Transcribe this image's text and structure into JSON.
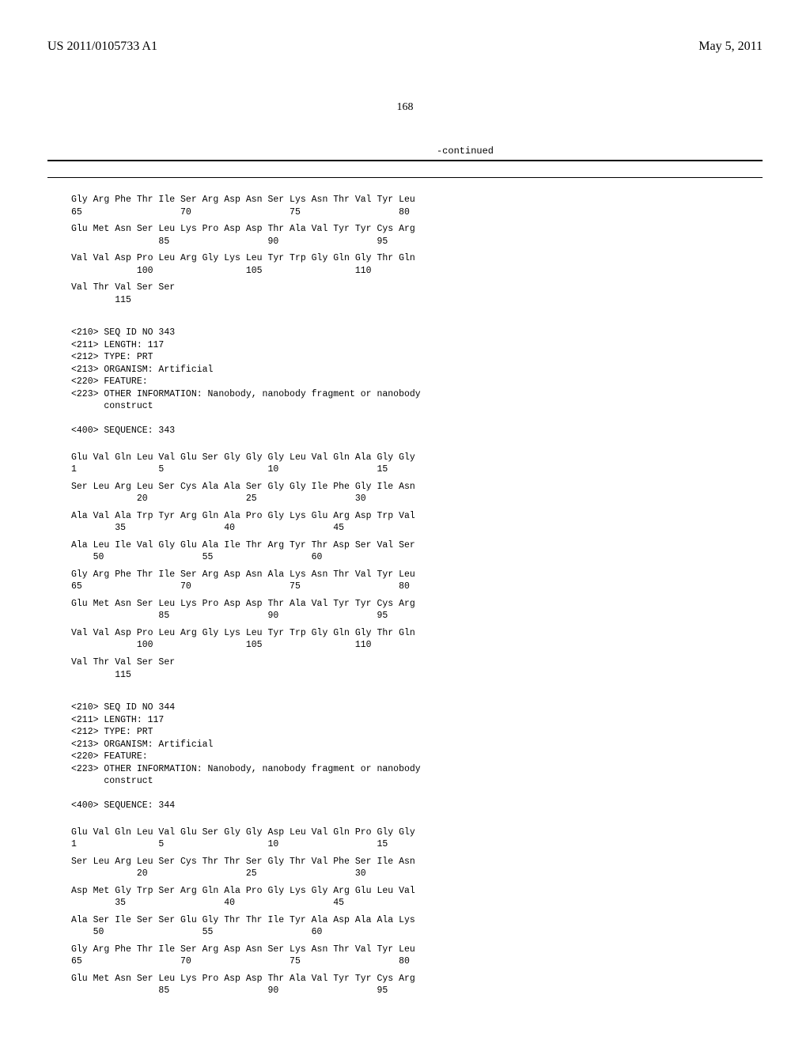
{
  "header": {
    "left": "US 2011/0105733 A1",
    "right": "May 5, 2011"
  },
  "page_number": "168",
  "continued_label": "-continued",
  "blocks": [
    {
      "type": "seq-pair",
      "aa": "Gly Arg Phe Thr Ile Ser Arg Asp Asn Ser Lys Asn Thr Val Tyr Leu",
      "num": "65                  70                  75                  80"
    },
    {
      "type": "seq-pair",
      "aa": "Glu Met Asn Ser Leu Lys Pro Asp Asp Thr Ala Val Tyr Tyr Cys Arg",
      "num": "                85                  90                  95"
    },
    {
      "type": "seq-pair",
      "aa": "Val Val Asp Pro Leu Arg Gly Lys Leu Tyr Trp Gly Gln Gly Thr Gln",
      "num": "            100                 105                 110"
    },
    {
      "type": "seq-pair",
      "aa": "Val Thr Val Ser Ser",
      "num": "        115"
    },
    {
      "type": "meta",
      "lines": [
        "<210> SEQ ID NO 343",
        "<211> LENGTH: 117",
        "<212> TYPE: PRT",
        "<213> ORGANISM: Artificial",
        "<220> FEATURE:",
        "<223> OTHER INFORMATION: Nanobody, nanobody fragment or nanobody",
        "      construct",
        "",
        "<400> SEQUENCE: 343"
      ]
    },
    {
      "type": "seq-pair",
      "aa": "Glu Val Gln Leu Val Glu Ser Gly Gly Gly Leu Val Gln Ala Gly Gly",
      "num": "1               5                   10                  15"
    },
    {
      "type": "seq-pair",
      "aa": "Ser Leu Arg Leu Ser Cys Ala Ala Ser Gly Gly Ile Phe Gly Ile Asn",
      "num": "            20                  25                  30"
    },
    {
      "type": "seq-pair",
      "aa": "Ala Val Ala Trp Tyr Arg Gln Ala Pro Gly Lys Glu Arg Asp Trp Val",
      "num": "        35                  40                  45"
    },
    {
      "type": "seq-pair",
      "aa": "Ala Leu Ile Val Gly Glu Ala Ile Thr Arg Tyr Thr Asp Ser Val Ser",
      "num": "    50                  55                  60"
    },
    {
      "type": "seq-pair",
      "aa": "Gly Arg Phe Thr Ile Ser Arg Asp Asn Ala Lys Asn Thr Val Tyr Leu",
      "num": "65                  70                  75                  80"
    },
    {
      "type": "seq-pair",
      "aa": "Glu Met Asn Ser Leu Lys Pro Asp Asp Thr Ala Val Tyr Tyr Cys Arg",
      "num": "                85                  90                  95"
    },
    {
      "type": "seq-pair",
      "aa": "Val Val Asp Pro Leu Arg Gly Lys Leu Tyr Trp Gly Gln Gly Thr Gln",
      "num": "            100                 105                 110"
    },
    {
      "type": "seq-pair",
      "aa": "Val Thr Val Ser Ser",
      "num": "        115"
    },
    {
      "type": "meta",
      "lines": [
        "<210> SEQ ID NO 344",
        "<211> LENGTH: 117",
        "<212> TYPE: PRT",
        "<213> ORGANISM: Artificial",
        "<220> FEATURE:",
        "<223> OTHER INFORMATION: Nanobody, nanobody fragment or nanobody",
        "      construct",
        "",
        "<400> SEQUENCE: 344"
      ]
    },
    {
      "type": "seq-pair",
      "aa": "Glu Val Gln Leu Val Glu Ser Gly Gly Asp Leu Val Gln Pro Gly Gly",
      "num": "1               5                   10                  15"
    },
    {
      "type": "seq-pair",
      "aa": "Ser Leu Arg Leu Ser Cys Thr Thr Ser Gly Thr Val Phe Ser Ile Asn",
      "num": "            20                  25                  30"
    },
    {
      "type": "seq-pair",
      "aa": "Asp Met Gly Trp Ser Arg Gln Ala Pro Gly Lys Gly Arg Glu Leu Val",
      "num": "        35                  40                  45"
    },
    {
      "type": "seq-pair",
      "aa": "Ala Ser Ile Ser Ser Glu Gly Thr Thr Ile Tyr Ala Asp Ala Ala Lys",
      "num": "    50                  55                  60"
    },
    {
      "type": "seq-pair",
      "aa": "Gly Arg Phe Thr Ile Ser Arg Asp Asn Ser Lys Asn Thr Val Tyr Leu",
      "num": "65                  70                  75                  80"
    },
    {
      "type": "seq-pair",
      "aa": "Glu Met Asn Ser Leu Lys Pro Asp Asp Thr Ala Val Tyr Tyr Cys Arg",
      "num": "                85                  90                  95"
    }
  ]
}
